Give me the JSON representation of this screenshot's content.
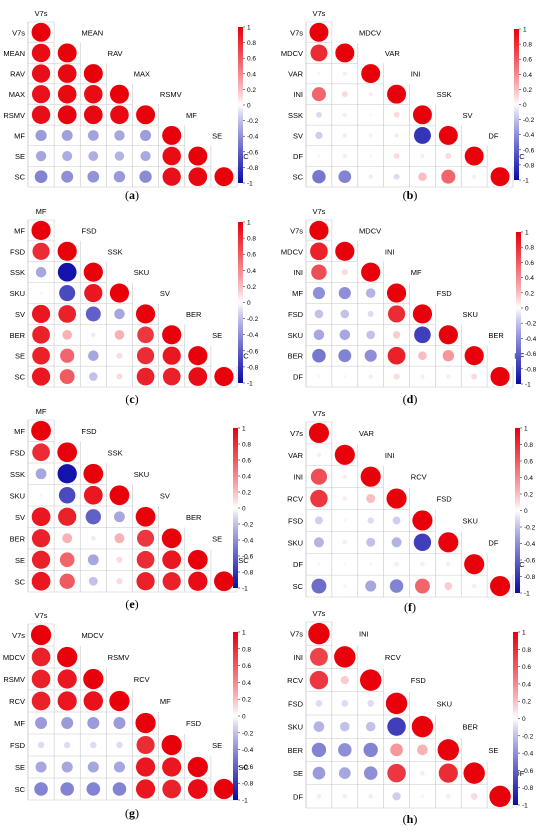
{
  "figure": {
    "colorbar": {
      "ticks": [
        "1",
        "0.8",
        "0.6",
        "0.4",
        "0.2",
        "0",
        "-0.2",
        "-0.4",
        "-0.6",
        "-0.8",
        "-1"
      ],
      "colors": {
        "positive": "#e8000b",
        "neutral": "#ffffff",
        "negative": "#0a0aa8"
      }
    },
    "grid_color": "#c8c8c8"
  },
  "chart_data": [
    {
      "type": "heatmap",
      "panel": "a",
      "caption": "(a)",
      "variables": [
        "V7s",
        "MEAN",
        "RAV",
        "MAX",
        "RSMV",
        "MF",
        "SE",
        "SC"
      ],
      "matrix": [
        [
          1
        ],
        [
          0.95,
          1
        ],
        [
          0.93,
          0.97,
          1
        ],
        [
          0.92,
          0.96,
          0.95,
          1
        ],
        [
          0.94,
          0.98,
          0.97,
          0.96,
          1
        ],
        [
          -0.35,
          -0.33,
          -0.32,
          -0.3,
          -0.34,
          1
        ],
        [
          -0.3,
          -0.28,
          -0.27,
          -0.25,
          -0.29,
          0.95,
          1
        ],
        [
          -0.45,
          -0.4,
          -0.38,
          -0.36,
          -0.42,
          0.93,
          0.97,
          1
        ]
      ]
    },
    {
      "type": "heatmap",
      "panel": "b",
      "caption": "(b)",
      "variables": [
        "V7s",
        "MDCV",
        "VAR",
        "INI",
        "SSK",
        "SV",
        "DF",
        "SC"
      ],
      "matrix": [
        [
          1
        ],
        [
          0.8,
          1
        ],
        [
          0.03,
          0.05,
          1
        ],
        [
          0.55,
          0.1,
          0.05,
          1
        ],
        [
          -0.1,
          0.05,
          0.02,
          0.1,
          1
        ],
        [
          -0.15,
          -0.05,
          0.04,
          -0.05,
          -0.8,
          1
        ],
        [
          0.03,
          0.05,
          0.02,
          0.1,
          0.05,
          0.1,
          1
        ],
        [
          -0.5,
          -0.45,
          -0.05,
          -0.1,
          0.2,
          0.55,
          0.05,
          1
        ]
      ]
    },
    {
      "type": "heatmap",
      "panel": "c",
      "caption": "(c)",
      "variables": [
        "MF",
        "FSD",
        "SSK",
        "SKU",
        "SV",
        "BER",
        "SE",
        "SC"
      ],
      "matrix": [
        [
          1
        ],
        [
          0.8,
          1
        ],
        [
          -0.3,
          -0.95,
          1
        ],
        [
          0.03,
          -0.7,
          0.9,
          1
        ],
        [
          0.9,
          0.85,
          -0.6,
          -0.3,
          1
        ],
        [
          0.85,
          0.25,
          -0.05,
          0.25,
          0.75,
          1
        ],
        [
          0.85,
          0.55,
          -0.3,
          0.1,
          0.8,
          0.9,
          1
        ],
        [
          0.9,
          0.6,
          -0.2,
          0.1,
          0.85,
          0.85,
          0.95,
          1
        ]
      ]
    },
    {
      "type": "heatmap",
      "panel": "d",
      "caption": "(d)",
      "variables": [
        "V7s",
        "MDCV",
        "INI",
        "MF",
        "FSD",
        "SKU",
        "BER",
        "DF"
      ],
      "matrix": [
        [
          1
        ],
        [
          0.85,
          1
        ],
        [
          0.65,
          0.1,
          1
        ],
        [
          -0.4,
          -0.4,
          -0.25,
          1
        ],
        [
          -0.2,
          -0.2,
          -0.1,
          0.8,
          1
        ],
        [
          -0.3,
          -0.3,
          -0.2,
          0.15,
          -0.75,
          1
        ],
        [
          -0.5,
          -0.45,
          -0.4,
          0.85,
          0.2,
          0.35,
          1
        ],
        [
          0.03,
          0.03,
          0.05,
          0.1,
          0.05,
          0.05,
          0.1,
          1
        ]
      ]
    },
    {
      "type": "heatmap",
      "panel": "e",
      "caption": "(e)",
      "variables": [
        "MF",
        "FSD",
        "SSK",
        "SKU",
        "SV",
        "BER",
        "SE",
        "SC"
      ],
      "matrix": [
        [
          1
        ],
        [
          0.8,
          1
        ],
        [
          -0.3,
          -0.95,
          1
        ],
        [
          0.03,
          -0.7,
          0.9,
          1
        ],
        [
          0.9,
          0.85,
          -0.6,
          -0.3,
          1
        ],
        [
          0.85,
          0.25,
          -0.05,
          0.25,
          0.75,
          1
        ],
        [
          0.85,
          0.55,
          -0.3,
          0.1,
          0.8,
          0.9,
          1
        ],
        [
          0.9,
          0.6,
          -0.2,
          0.1,
          0.85,
          0.85,
          0.95,
          1
        ]
      ]
    },
    {
      "type": "heatmap",
      "panel": "f",
      "caption": "(f)",
      "variables": [
        "V7s",
        "VAR",
        "INI",
        "RCV",
        "FSD",
        "SKU",
        "DF",
        "SC"
      ],
      "matrix": [
        [
          1
        ],
        [
          0.05,
          1
        ],
        [
          0.65,
          0.05,
          1
        ],
        [
          0.75,
          0.05,
          0.2,
          1
        ],
        [
          -0.15,
          0.03,
          -0.1,
          -0.15,
          1
        ],
        [
          -0.25,
          0.05,
          -0.2,
          -0.25,
          -0.75,
          1
        ],
        [
          0.03,
          0.02,
          0.03,
          0.05,
          0.05,
          0.05,
          1
        ],
        [
          -0.55,
          0.03,
          -0.3,
          -0.45,
          0.55,
          0.15,
          0.05,
          1
        ]
      ]
    },
    {
      "type": "heatmap",
      "panel": "g",
      "caption": "(g)",
      "variables": [
        "V7s",
        "MDCV",
        "RSMV",
        "RCV",
        "MF",
        "FSD",
        "SE",
        "SC"
      ],
      "matrix": [
        [
          1
        ],
        [
          0.85,
          1
        ],
        [
          0.85,
          0.9,
          1
        ],
        [
          0.85,
          0.9,
          0.92,
          1
        ],
        [
          -0.35,
          -0.35,
          -0.35,
          -0.35,
          1
        ],
        [
          -0.1,
          -0.1,
          -0.1,
          -0.1,
          0.8,
          1
        ],
        [
          -0.3,
          -0.3,
          -0.3,
          -0.3,
          0.9,
          0.9,
          1
        ],
        [
          -0.45,
          -0.45,
          -0.45,
          -0.45,
          0.9,
          0.85,
          0.95,
          1
        ]
      ]
    },
    {
      "type": "heatmap",
      "panel": "h",
      "caption": "(h)",
      "variables": [
        "V7s",
        "INI",
        "RCV",
        "FSD",
        "SKU",
        "BER",
        "SE",
        "DF"
      ],
      "matrix": [
        [
          1
        ],
        [
          0.7,
          1
        ],
        [
          0.75,
          0.15,
          1
        ],
        [
          -0.1,
          -0.1,
          -0.1,
          1
        ],
        [
          -0.25,
          -0.2,
          -0.2,
          -0.75,
          1
        ],
        [
          -0.45,
          -0.4,
          -0.45,
          0.35,
          0.25,
          1
        ],
        [
          -0.35,
          -0.3,
          -0.4,
          0.75,
          0.05,
          0.8,
          1
        ],
        [
          0.05,
          0.05,
          0.05,
          -0.15,
          0.03,
          0.05,
          0.1,
          1
        ]
      ]
    }
  ]
}
